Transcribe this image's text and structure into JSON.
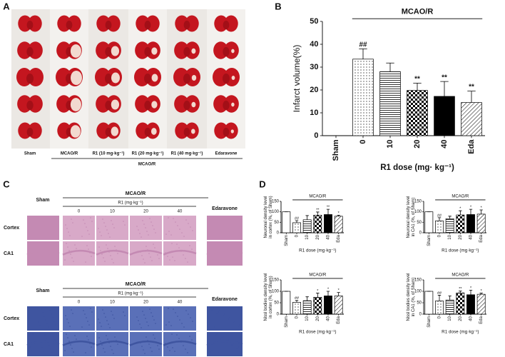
{
  "panel_a": {
    "letter": "A",
    "columns": [
      "Sham",
      "MCAO/R",
      "R1 (10 mg·kg⁻¹)",
      "R1 (20 mg·kg⁻¹)",
      "R1 (40 mg·kg⁻¹)",
      "Edaravone"
    ],
    "group": "MCAO/R"
  },
  "panel_c": {
    "letter": "C",
    "blocks": [
      {
        "sham": "Sham",
        "group": "MCAO/R",
        "dose_label": "R1 (mg·kg⁻¹)",
        "doses": [
          "0",
          "10",
          "20",
          "40"
        ],
        "positive": "Edaravone",
        "rows": [
          "Cortex",
          "CA1"
        ]
      },
      {
        "sham": "Sham",
        "group": "MCAO/R",
        "dose_label": "R1 (mg·kg⁻¹)",
        "doses": [
          "0",
          "10",
          "20",
          "40"
        ],
        "positive": "Edaravone",
        "rows": [
          "Cortex",
          "CA1"
        ]
      }
    ]
  },
  "panel_d": {
    "letter": "D"
  },
  "chart_data": [
    {
      "type": "bar",
      "panel": "B",
      "group": "MCAO/R",
      "ylabel": "Infarct volume(%)",
      "xlabel": "R1 dose (mg· kg⁻¹)",
      "categories": [
        "Sham",
        "0",
        "10",
        "20",
        "40",
        "Eda"
      ],
      "values": [
        0,
        33.5,
        28,
        19.8,
        17.2,
        14.5
      ],
      "errors": [
        0,
        4.5,
        3.8,
        3.2,
        6.5,
        5
      ],
      "annotations": [
        null,
        "##",
        null,
        "**",
        "**",
        "**"
      ],
      "patterns": [
        "white",
        "dots",
        "hlines",
        "checker",
        "black",
        "diag"
      ],
      "ylim": [
        0,
        50
      ],
      "yticks": [
        0,
        10,
        20,
        30,
        40,
        50
      ]
    },
    {
      "type": "bar",
      "group": "MCAO/R",
      "ylabel": [
        "Neuronal density level",
        "in cortex (%, of Sham)"
      ],
      "xlabel": "R1 dose (mg·kg⁻¹)",
      "categories": [
        "Sham",
        "0",
        "10",
        "20",
        "40",
        "Eda"
      ],
      "values": [
        100,
        48,
        62,
        84,
        87,
        79
      ],
      "errors": [
        0,
        10,
        20,
        15,
        25,
        5
      ],
      "annotations": [
        null,
        "##",
        null,
        "**",
        "**",
        "*"
      ],
      "patterns": [
        "white",
        "dots",
        "hlines",
        "checker",
        "black",
        "diag"
      ],
      "ylim": [
        0,
        150
      ],
      "yticks": [
        0,
        50,
        100,
        150
      ]
    },
    {
      "type": "bar",
      "group": "MCAO/R",
      "ylabel": [
        "Neuronal density level",
        "in CA1 (%, of Sham)"
      ],
      "xlabel": "R1 dose (mg·kg⁻¹)",
      "categories": [
        "Sham",
        "0",
        "10",
        "20",
        "40",
        "Eda"
      ],
      "values": [
        100,
        57,
        67,
        85,
        87,
        89
      ],
      "errors": [
        0,
        15,
        12,
        20,
        25,
        20
      ],
      "annotations": [
        null,
        "##",
        null,
        "*",
        "*",
        "*"
      ],
      "patterns": [
        "white",
        "dots",
        "hlines",
        "checker",
        "black",
        "diag"
      ],
      "ylim": [
        0,
        150
      ],
      "yticks": [
        0,
        50,
        100,
        150
      ]
    },
    {
      "type": "bar",
      "group": "MCAO/R",
      "ylabel": [
        "Nissl bodies density level",
        "in cortex (%, of Sham)"
      ],
      "xlabel": "R1 dose (mg·kg⁻¹)",
      "categories": [
        "Sham",
        "0",
        "10",
        "20",
        "40",
        "Eda"
      ],
      "values": [
        100,
        52,
        59,
        74,
        80,
        80
      ],
      "errors": [
        0,
        8,
        17,
        18,
        20,
        15
      ],
      "annotations": [
        null,
        "##",
        null,
        "*",
        "*",
        "*"
      ],
      "patterns": [
        "white",
        "dots",
        "hlines",
        "checker",
        "black",
        "diag"
      ],
      "ylim": [
        0,
        150
      ],
      "yticks": [
        0,
        50,
        100,
        150
      ]
    },
    {
      "type": "bar",
      "group": "MCAO/R",
      "ylabel": [
        "Nissl bodies density level",
        "in CA1 (%, of Sham)"
      ],
      "xlabel": "R1 dose (mg·kg⁻¹)",
      "categories": [
        "Sham",
        "0",
        "10",
        "20",
        "40",
        "Eda"
      ],
      "values": [
        100,
        58,
        62,
        93,
        85,
        87
      ],
      "errors": [
        0,
        25,
        18,
        8,
        20,
        5
      ],
      "annotations": [
        null,
        "##",
        null,
        "**",
        "*",
        "*"
      ],
      "patterns": [
        "white",
        "dots",
        "hlines",
        "checker",
        "black",
        "diag"
      ],
      "ylim": [
        0,
        150
      ],
      "yticks": [
        0,
        50,
        100,
        150
      ]
    }
  ]
}
